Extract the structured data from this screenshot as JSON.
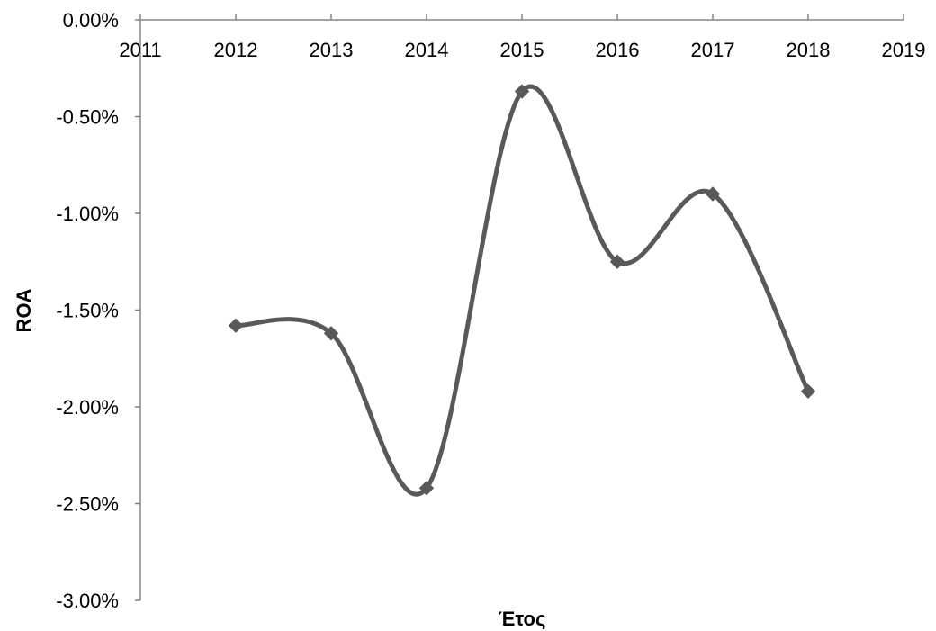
{
  "chart_data": {
    "type": "line",
    "title": "",
    "xlabel": "Έτος",
    "ylabel": "ROA",
    "x_ticks": [
      "2011",
      "2012",
      "2013",
      "2014",
      "2015",
      "2016",
      "2017",
      "2018",
      "2019"
    ],
    "y_ticks": [
      "0.00%",
      "-0.50%",
      "-1.00%",
      "-1.50%",
      "-2.00%",
      "-2.50%",
      "-3.00%"
    ],
    "xlim": [
      2011,
      2019
    ],
    "ylim": [
      -3.0,
      0.0
    ],
    "x_axis_position": "top",
    "grid": false,
    "legend": "none",
    "smoothed": true,
    "marker": "diamond",
    "series": [
      {
        "color": "#595959",
        "x": [
          2012,
          2013,
          2014,
          2015,
          2016,
          2017,
          2018
        ],
        "y": [
          -1.58,
          -1.62,
          -2.42,
          -0.37,
          -1.25,
          -0.9,
          -1.92
        ]
      }
    ]
  }
}
